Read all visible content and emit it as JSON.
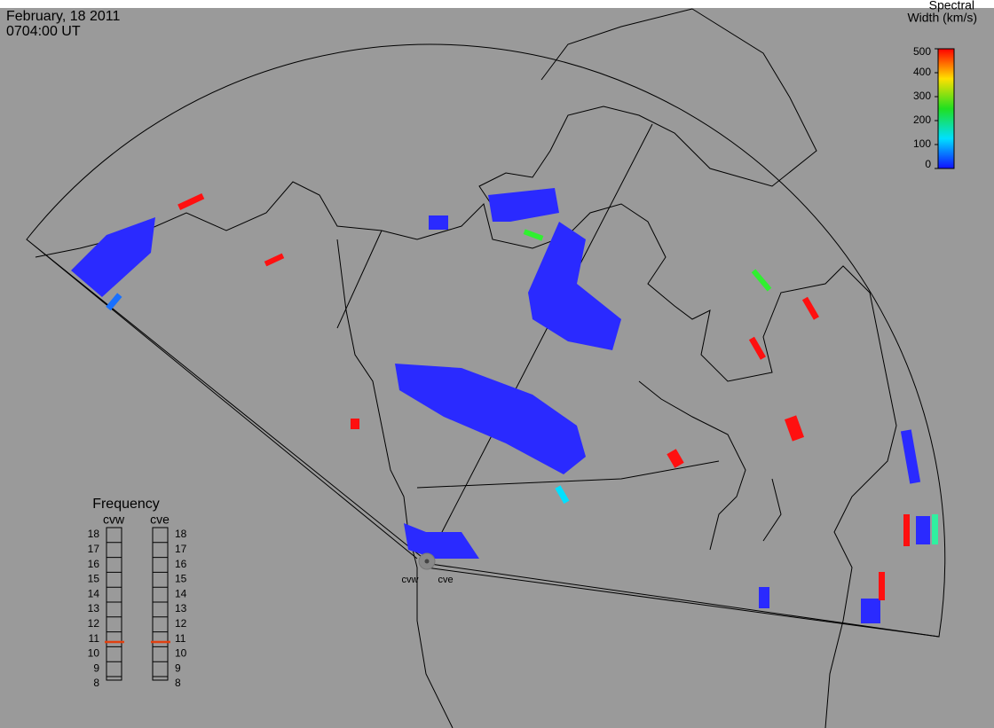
{
  "header": {
    "date": "February, 18 2011",
    "time": "0704:00 UT"
  },
  "colorbar": {
    "title": [
      "Spectral",
      "Width (km/s)"
    ],
    "lim": [
      0,
      500
    ],
    "ticks": [
      0,
      100,
      200,
      300,
      400,
      500
    ],
    "colors": [
      "#1010ff",
      "#00e0ff",
      "#20e020",
      "#ffe000",
      "#ff0000"
    ]
  },
  "frequency": {
    "title": "Frequency",
    "lim": [
      8,
      18
    ],
    "ticks": [
      8,
      9,
      10,
      11,
      12,
      13,
      14,
      15,
      16,
      17,
      18
    ],
    "marker_color": "#e04010",
    "radars": [
      {
        "name": "cvw",
        "value": 10.8
      },
      {
        "name": "cve",
        "value": 10.8
      }
    ]
  },
  "map": {
    "radars": [
      "cvw",
      "cve"
    ]
  }
}
